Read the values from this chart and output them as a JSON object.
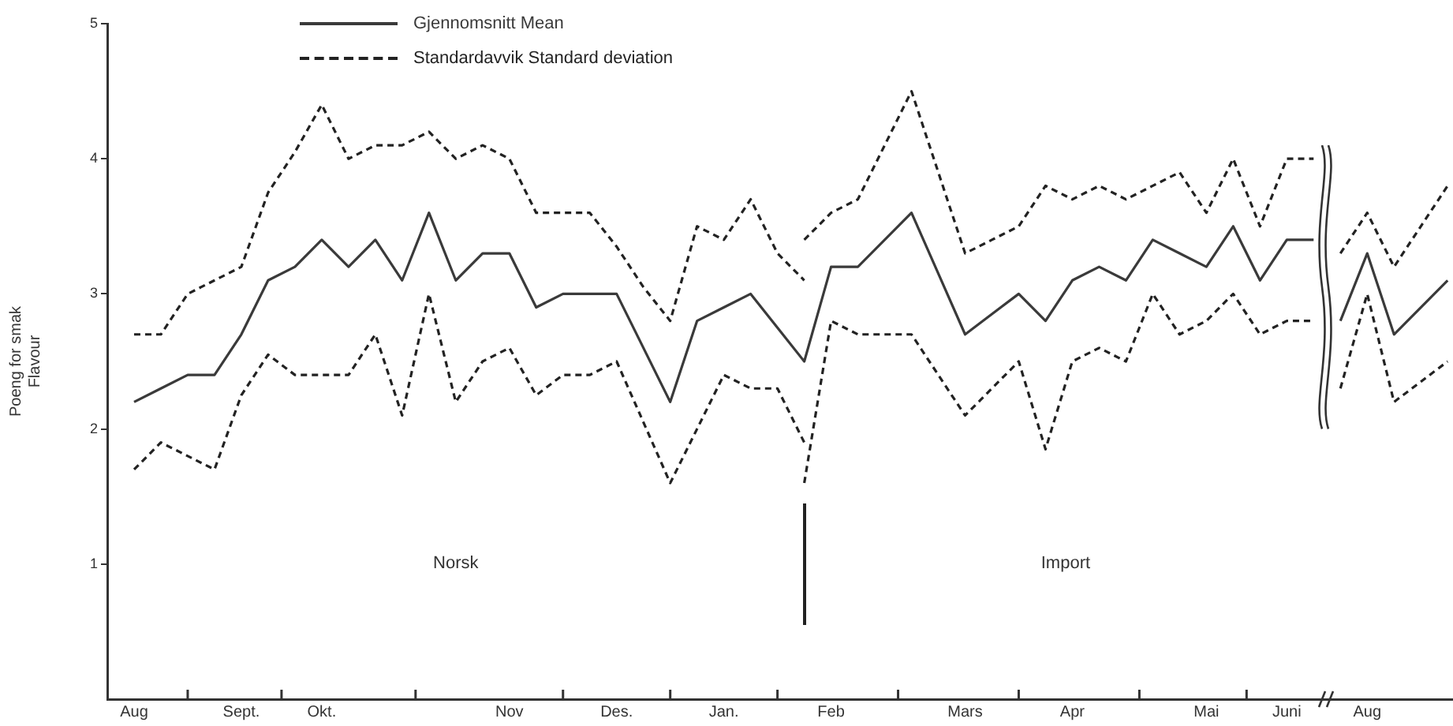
{
  "chart_data": {
    "type": "line",
    "ylabel": "Poeng for smak\nFlavour",
    "categories": [
      "Aug",
      null,
      null,
      null,
      "Sept.",
      null,
      null,
      "Okt.",
      null,
      null,
      null,
      null,
      null,
      null,
      "Nov",
      null,
      null,
      null,
      "Des.",
      null,
      null,
      null,
      "Jan.",
      null,
      null,
      null,
      "Feb",
      null,
      null,
      null,
      null,
      "Mars",
      null,
      null,
      null,
      "Apr",
      null,
      null,
      null,
      null,
      "Mai",
      null,
      null,
      "Juni",
      null,
      null,
      "Aug",
      null,
      null,
      null
    ],
    "ylim": [
      0,
      5
    ],
    "yticks": [
      1,
      2,
      3,
      4,
      5
    ],
    "grid": false,
    "legend": "top",
    "marker": "none",
    "series": [
      {
        "name": "Gjennomsnitt Mean",
        "color": "#3a3a3a",
        "line_style": "solid",
        "values": [
          2.2,
          2.3,
          2.4,
          2.4,
          2.7,
          3.1,
          3.2,
          3.4,
          3.2,
          3.4,
          3.1,
          3.6,
          3.1,
          3.3,
          3.3,
          2.9,
          3.0,
          3.0,
          3.0,
          2.6,
          2.2,
          2.8,
          2.9,
          3.0,
          2.75,
          2.5,
          3.2,
          3.2,
          3.4,
          3.6,
          3.15,
          2.7,
          2.85,
          3.0,
          2.8,
          3.1,
          3.2,
          3.1,
          3.4,
          3.3,
          3.2,
          3.5,
          3.1,
          3.4,
          3.4,
          null,
          null,
          null,
          null,
          null
        ]
      },
      {
        "color": "#3a3a3a",
        "line_style": "solid",
        "values": [
          null,
          null,
          null,
          null,
          null,
          null,
          null,
          null,
          null,
          null,
          null,
          null,
          null,
          null,
          null,
          null,
          null,
          null,
          null,
          null,
          null,
          null,
          null,
          null,
          null,
          null,
          null,
          null,
          null,
          null,
          null,
          null,
          null,
          null,
          null,
          null,
          null,
          null,
          null,
          null,
          null,
          null,
          null,
          null,
          null,
          2.8,
          3.3,
          2.7,
          2.9,
          3.1
        ]
      },
      {
        "name": "Standardavvik Standard deviation",
        "color": "#222222",
        "line_style": "dashed",
        "values": [
          2.7,
          2.7,
          3.0,
          3.1,
          3.2,
          3.75,
          4.05,
          4.4,
          4.0,
          4.1,
          4.1,
          4.2,
          4.0,
          4.1,
          4.0,
          3.6,
          3.6,
          3.6,
          3.35,
          3.05,
          2.8,
          3.5,
          3.4,
          3.7,
          3.3,
          3.1,
          null,
          null,
          null,
          null,
          null,
          null,
          null,
          null,
          null,
          null,
          null,
          null,
          null,
          null,
          null,
          null,
          null,
          null,
          null,
          3.3,
          3.6,
          3.2,
          3.5,
          3.8
        ]
      },
      {
        "color": "#222222",
        "line_style": "dashed",
        "values": [
          null,
          null,
          null,
          null,
          null,
          null,
          null,
          null,
          null,
          null,
          null,
          null,
          null,
          null,
          null,
          null,
          null,
          null,
          null,
          null,
          null,
          null,
          null,
          null,
          null,
          3.4,
          3.6,
          3.7,
          4.1,
          4.5,
          3.9,
          3.3,
          3.4,
          3.5,
          3.8,
          3.7,
          3.8,
          3.7,
          3.8,
          3.9,
          3.6,
          4.0,
          3.5,
          4.0,
          4.0,
          null,
          null,
          null,
          null,
          null
        ]
      },
      {
        "color": "#222222",
        "line_style": "dashed",
        "values": [
          1.7,
          1.9,
          1.8,
          1.7,
          2.25,
          2.55,
          2.4,
          2.4,
          2.4,
          2.7,
          2.1,
          3.0,
          2.2,
          2.5,
          2.6,
          2.25,
          2.4,
          2.4,
          2.5,
          2.05,
          1.6,
          2.0,
          2.4,
          2.3,
          2.3,
          1.9,
          null,
          null,
          null,
          null,
          null,
          null,
          null,
          null,
          null,
          null,
          null,
          null,
          null,
          null,
          null,
          null,
          null,
          null,
          null,
          2.3,
          3.0,
          2.2,
          2.35,
          2.5
        ]
      },
      {
        "color": "#222222",
        "line_style": "dashed",
        "values": [
          null,
          null,
          null,
          null,
          null,
          null,
          null,
          null,
          null,
          null,
          null,
          null,
          null,
          null,
          null,
          null,
          null,
          null,
          null,
          null,
          null,
          null,
          null,
          null,
          null,
          1.6,
          2.8,
          2.7,
          2.7,
          2.7,
          2.4,
          2.1,
          2.3,
          2.5,
          1.85,
          2.5,
          2.6,
          2.5,
          3.0,
          2.7,
          2.8,
          3.0,
          2.7,
          2.8,
          2.8,
          null,
          null,
          null,
          null,
          null
        ]
      }
    ],
    "annotations": [
      "Norsk",
      "Import"
    ]
  }
}
